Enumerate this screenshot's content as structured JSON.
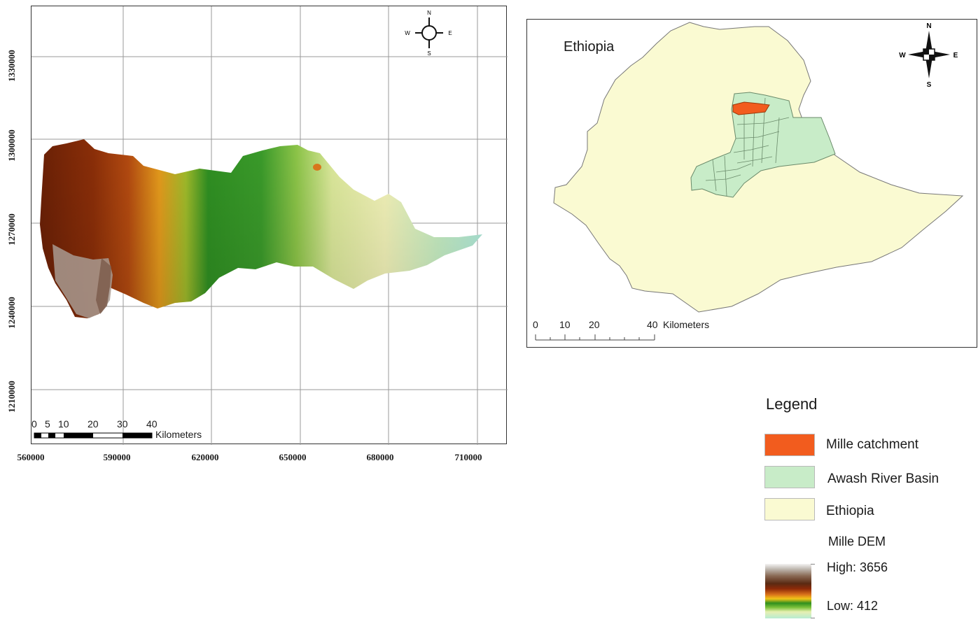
{
  "dem_map": {
    "x_ticks": [
      "560000",
      "590000",
      "620000",
      "650000",
      "680000",
      "710000"
    ],
    "y_ticks": [
      "1330000",
      "1300000",
      "1270000",
      "1240000",
      "1210000"
    ],
    "scale_bar": {
      "labels": [
        "0",
        "5",
        "10",
        "20",
        "30",
        "40"
      ],
      "unit": "Kilometers"
    },
    "compass": {
      "n": "N",
      "s": "S",
      "e": "E",
      "w": "W",
      "icon": "north-arrow-icon"
    },
    "elevation_range": {
      "high": 3656,
      "low": 412
    }
  },
  "inset_map": {
    "title": "Ethiopia",
    "scale_bar": {
      "labels": [
        "0",
        "10",
        "20",
        "40"
      ],
      "unit": "Kilometers"
    },
    "compass": {
      "n": "N",
      "s": "S",
      "e": "E",
      "w": "W",
      "icon": "north-arrow-icon"
    }
  },
  "legend": {
    "title": "Legend",
    "items": [
      {
        "label": "Mille catchment",
        "color": "#f25c1e"
      },
      {
        "label": "Awash River Basin",
        "color": "#c8ecc8"
      },
      {
        "label": "Ethiopia",
        "color": "#fafad2"
      }
    ],
    "dem": {
      "title": "Mille DEM",
      "high_label": "High: 3656",
      "low_label": "Low: 412"
    }
  },
  "colors": {
    "ethiopia_fill": "#fafad2",
    "basin_fill": "#c8ecc8",
    "catchment_fill": "#f25c1e",
    "grid": "#9a9a9a"
  }
}
